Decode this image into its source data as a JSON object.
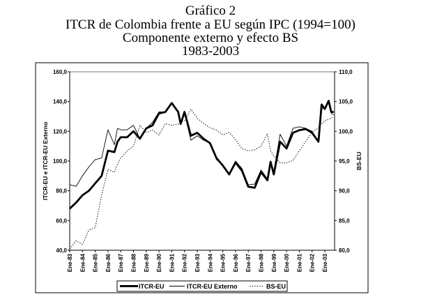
{
  "chart_data": {
    "type": "line",
    "title_lines": [
      "Gráfico 2",
      "ITCR de Colombia frente a EU según IPC  (1994=100)",
      "Componente externo y efecto BS",
      "1983-2003"
    ],
    "ylabel": "ITCR-EU  e  ITCR-EU Externo",
    "y2label": "BS-EU",
    "ylim": [
      40,
      160
    ],
    "y2lim": [
      80,
      110
    ],
    "yticks": [
      "40,0",
      "60,0",
      "80,0",
      "100,0",
      "120,0",
      "140,0",
      "160,0"
    ],
    "y2ticks": [
      "80,0",
      "85,0",
      "90,0",
      "95,0",
      "100,0",
      "105,0",
      "110,0"
    ],
    "xticks": [
      "Ene-83",
      "Ene-84",
      "Ene-85",
      "Ene-86",
      "Ene-87",
      "Ene-88",
      "Ene-89",
      "Ene-90",
      "Ene-91",
      "Ene-92",
      "Ene-93",
      "Ene-94",
      "Ene-95",
      "Ene-96",
      "Ene-97",
      "Ene-98",
      "Ene-99",
      "Ene-00",
      "Ene-01",
      "Ene-02",
      "Ene-03"
    ],
    "xlim": [
      1983,
      2003.75
    ],
    "x": [
      1983,
      1983.5,
      1984,
      1984.5,
      1985,
      1985.5,
      1986,
      1986.5,
      1986.75,
      1987,
      1987.5,
      1988,
      1988.5,
      1989,
      1989.5,
      1990,
      1990.5,
      1991,
      1991.5,
      1991.7,
      1992,
      1992.5,
      1993,
      1993.5,
      1994,
      1994.5,
      1995,
      1995.5,
      1996,
      1996.5,
      1997,
      1997.5,
      1998,
      1998.5,
      1998.75,
      1999,
      1999.5,
      2000,
      2000.5,
      2001,
      2001.5,
      2002,
      2002.5,
      2002.75,
      2003,
      2003.3,
      2003.5,
      2003.7
    ],
    "series": [
      {
        "name": "ITCR-EU",
        "axis": "left",
        "style": "thick",
        "values": [
          68,
          72,
          77,
          80,
          85,
          90,
          107,
          106,
          113,
          116,
          116,
          120,
          115,
          122,
          124,
          132,
          133,
          139,
          133,
          125,
          133,
          117,
          119,
          115,
          112,
          102,
          97,
          91,
          99,
          93.5,
          82.7,
          82,
          92.5,
          87,
          99.5,
          91,
          113,
          108.4,
          119,
          120.7,
          121.5,
          119,
          113,
          138,
          135,
          140.5,
          133,
          133
        ]
      },
      {
        "name": "ITCR-EU Externo",
        "axis": "left",
        "style": "thin",
        "values": [
          84,
          83,
          90,
          96,
          101,
          102,
          121,
          111,
          122,
          121,
          121,
          124,
          115,
          122,
          126,
          133,
          133,
          139,
          133,
          126,
          132,
          114,
          117,
          114,
          112,
          101,
          97,
          91.5,
          100,
          95,
          84,
          84.5,
          94,
          88,
          100,
          93,
          118,
          110,
          122,
          123,
          122,
          120,
          113,
          135,
          136,
          140,
          132,
          131
        ]
      },
      {
        "name": "BS-EU",
        "axis": "right",
        "style": "dotted",
        "values": [
          80.2,
          81.6,
          81,
          83.4,
          83.8,
          89.3,
          93.6,
          93.1,
          94.5,
          95.5,
          96.7,
          97.5,
          101,
          99.8,
          100.2,
          99.4,
          101.3,
          101,
          101.2,
          101.5,
          101.8,
          103.7,
          102.2,
          101.3,
          100.6,
          100.2,
          99.4,
          99.8,
          98.6,
          97.1,
          96.7,
          96.9,
          97.5,
          99.6,
          96.7,
          95.9,
          94.7,
          94.7,
          95.1,
          96.7,
          98.3,
          99.8,
          100.6,
          101.2,
          101.8,
          102,
          102.2,
          102.5
        ]
      }
    ],
    "legend": [
      "ITCR-EU",
      "ITCR-EU Externo",
      "BS-EU"
    ],
    "legend_position": "bottom",
    "grid": false
  }
}
